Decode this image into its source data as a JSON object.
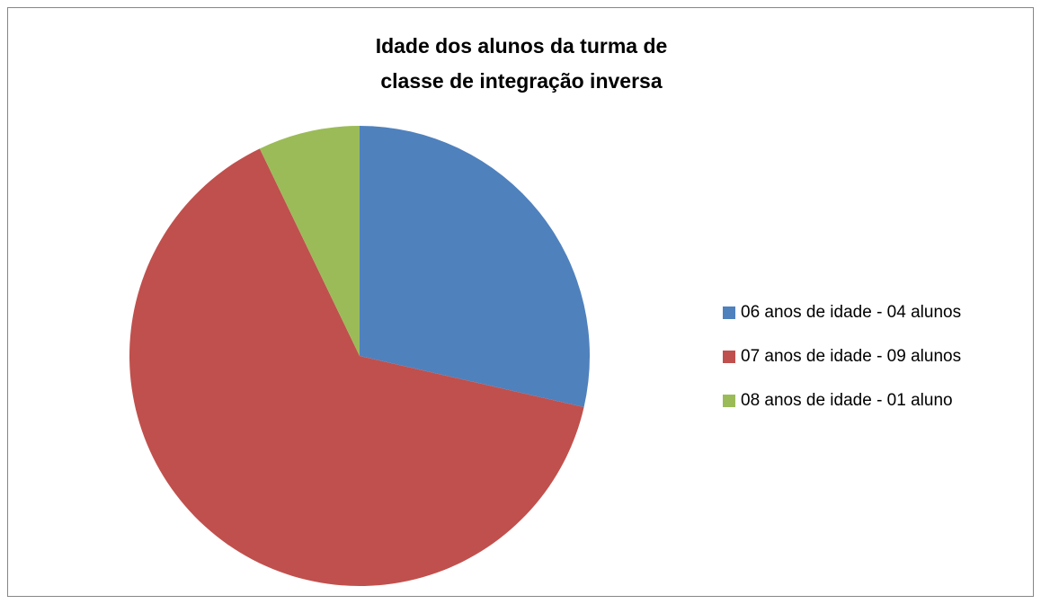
{
  "chart_data": {
    "type": "pie",
    "title": [
      "Idade dos alunos da turma de",
      "classe de integração inversa"
    ],
    "categories": [
      "06 anos de idade - 04 alunos",
      "07 anos de idade - 09 alunos",
      "08 anos de idade - 01 aluno"
    ],
    "values": [
      4,
      9,
      1
    ],
    "colors": [
      "#4f81bd",
      "#c0504d",
      "#9bbb59"
    ],
    "legend": "right"
  }
}
